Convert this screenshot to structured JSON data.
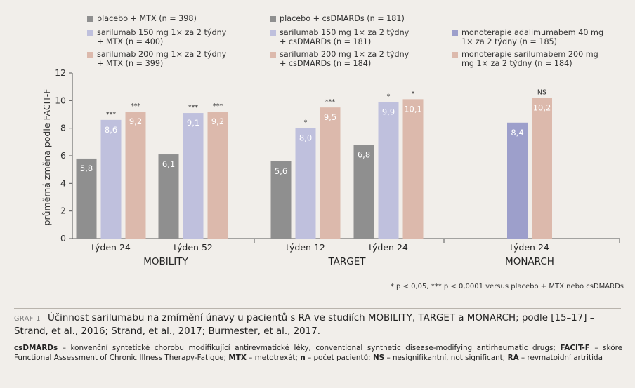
{
  "chart_data": {
    "type": "bar",
    "ylabel": "průměrná změna podle FACIT-F",
    "ylim": [
      0,
      12
    ],
    "yticks": [
      0,
      2,
      4,
      6,
      8,
      10,
      12
    ],
    "series": [
      {
        "name": "placebo + MTX (n = 398)",
        "color": "#8f8f8f"
      },
      {
        "name": "sarilumab 150 mg 1× za 2 týdny + MTX (n = 400)",
        "color": "#bfc0dd"
      },
      {
        "name": "sarilumab 200 mg 1× za 2 týdny + MTX (n = 399)",
        "color": "#dcb9ac"
      },
      {
        "name": "placebo + csDMARDs (n = 181)",
        "color": "#8f8f8f"
      },
      {
        "name": "sarilumab 150 mg 1× za 2 týdny + csDMARDs (n = 181)",
        "color": "#bfc0dd"
      },
      {
        "name": "sarilumab 200 mg 1× za 2 týdny + csDMARDs (n = 184)",
        "color": "#dcb9ac"
      },
      {
        "name": "monoterapie adalimumabem 40 mg 1× za 2 týdny (n = 185)",
        "color": "#9d9fcb"
      },
      {
        "name": "monoterapie sarilumabem 200 mg mg 1× za 2 týdny (n = 184)",
        "color": "#dcb9ac"
      }
    ],
    "studies": [
      {
        "name": "MOBILITY",
        "groups": [
          {
            "label": "týden 24",
            "bars": [
              {
                "series": 0,
                "value": 5.8,
                "label": "5,8",
                "sig": ""
              },
              {
                "series": 1,
                "value": 8.6,
                "label": "8,6",
                "sig": "***"
              },
              {
                "series": 2,
                "value": 9.2,
                "label": "9,2",
                "sig": "***"
              }
            ]
          },
          {
            "label": "týden 52",
            "bars": [
              {
                "series": 0,
                "value": 6.1,
                "label": "6,1",
                "sig": ""
              },
              {
                "series": 1,
                "value": 9.1,
                "label": "9,1",
                "sig": "***"
              },
              {
                "series": 2,
                "value": 9.2,
                "label": "9,2",
                "sig": "***"
              }
            ]
          }
        ]
      },
      {
        "name": "TARGET",
        "groups": [
          {
            "label": "týden 12",
            "bars": [
              {
                "series": 3,
                "value": 5.6,
                "label": "5,6",
                "sig": ""
              },
              {
                "series": 4,
                "value": 8.0,
                "label": "8,0",
                "sig": "*"
              },
              {
                "series": 5,
                "value": 9.5,
                "label": "9,5",
                "sig": "***"
              }
            ]
          },
          {
            "label": "týden 24",
            "bars": [
              {
                "series": 3,
                "value": 6.8,
                "label": "6,8",
                "sig": ""
              },
              {
                "series": 4,
                "value": 9.9,
                "label": "9,9",
                "sig": "*"
              },
              {
                "series": 5,
                "value": 10.1,
                "label": "10,1",
                "sig": "*"
              }
            ]
          }
        ]
      },
      {
        "name": "MONARCH",
        "groups": [
          {
            "label": "týden 24",
            "bars": [
              {
                "series": 6,
                "value": 8.4,
                "label": "8,4",
                "sig": ""
              },
              {
                "series": 7,
                "value": 10.2,
                "label": "10,2",
                "sig": "NS"
              }
            ]
          }
        ]
      }
    ],
    "legend_placement": "top",
    "grid": false
  },
  "legend": [
    {
      "text": "placebo + MTX (n = 398)",
      "color": "#8f8f8f"
    },
    {
      "text": "sarilumab 150 mg 1× za 2 týdny\n+ MTX (n = 400)",
      "color": "#bfc0dd"
    },
    {
      "text": "sarilumab 200 mg 1× za 2 týdny\n+ MTX (n = 399)",
      "color": "#dcb9ac"
    },
    {
      "text": "placebo + csDMARDs (n = 181)",
      "color": "#8f8f8f"
    },
    {
      "text": "sarilumab 150 mg 1× za 2 týdny\n+ csDMARDs (n = 181)",
      "color": "#bfc0dd"
    },
    {
      "text": "sarilumab 200 mg 1× za 2 týdny\n+ csDMARDs (n = 184)",
      "color": "#dcb9ac"
    },
    {
      "text": "monoterapie adalimumabem 40 mg\n1× za 2 týdny (n = 185)",
      "color": "#9d9fcb"
    },
    {
      "text": "monoterapie sarilumabem 200 mg\nmg 1× za 2 týdny (n = 184)",
      "color": "#dcb9ac"
    }
  ],
  "footnote": "* p < 0,05, *** p < 0,0001 versus placebo + MTX nebo csDMARDs",
  "caption": {
    "label": "GRAF 1",
    "text": "Účinnost sarilumabu na zmírnění únavy u pacientů s RA ve studiích MOBILITY, TARGET a MONARCH; podle [15–17] – Strand, et al., 2016; Strand, et al., 2017; Burmester, et al., 2017."
  },
  "abbreviations": [
    {
      "term": "csDMARDs",
      "def": " – konvenční syntetické chorobu modifikující antirevmatické léky, conventional synthetic disease-modifying antirheumatic drugs; "
    },
    {
      "term": "FACIT-F",
      "def": " – skóre Functional Assessment of Chronic Illness Therapy-Fatigue; "
    },
    {
      "term": "MTX",
      "def": " – metotrexát; "
    },
    {
      "term": "n",
      "def": " – počet pacientů; "
    },
    {
      "term": "NS",
      "def": " – nesignifikantní, not significant; "
    },
    {
      "term": "RA",
      "def": " – revmatoidní artritida"
    }
  ]
}
